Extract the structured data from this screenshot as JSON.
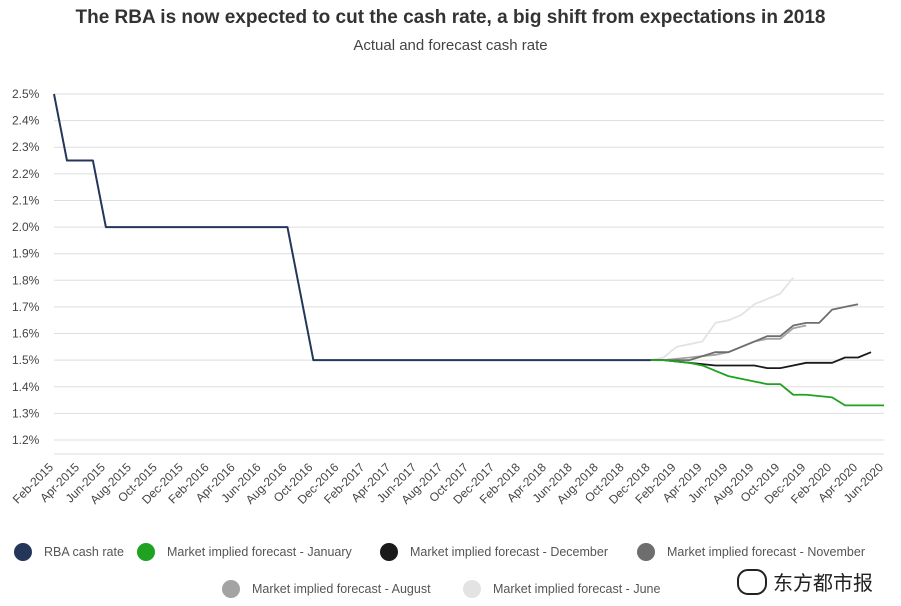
{
  "title": "The RBA is now expected to cut the cash rate, a big shift from expectations in 2018",
  "subtitle": "Actual and forecast cash rate",
  "watermark": "东方都市报",
  "chart_data": {
    "type": "line",
    "title": "The RBA is now expected to cut the cash rate, a big shift from expectations in 2018",
    "subtitle": "Actual and forecast cash rate",
    "y_ticks": [
      "1.2%",
      "1.3%",
      "1.4%",
      "1.5%",
      "1.6%",
      "1.7%",
      "1.8%",
      "1.9%",
      "2.0%",
      "2.1%",
      "2.2%",
      "2.3%",
      "2.4%",
      "2.5%"
    ],
    "ylim": [
      1.2,
      2.5
    ],
    "x_ticks": [
      "Feb-2015",
      "Apr-2015",
      "Jun-2015",
      "Aug-2015",
      "Oct-2015",
      "Dec-2015",
      "Feb-2016",
      "Apr-2016",
      "Jun-2016",
      "Aug-2016",
      "Oct-2016",
      "Dec-2016",
      "Feb-2017",
      "Apr-2017",
      "Jun-2017",
      "Aug-2017",
      "Oct-2017",
      "Dec-2017",
      "Feb-2018",
      "Apr-2018",
      "Jun-2018",
      "Aug-2018",
      "Oct-2018",
      "Dec-2018",
      "Feb-2019",
      "Apr-2019",
      "Jun-2019",
      "Aug-2019",
      "Oct-2019",
      "Dec-2019",
      "Feb-2020",
      "Apr-2020",
      "Jun-2020"
    ],
    "grid": true,
    "legend_position": "bottom",
    "series": [
      {
        "name": "RBA cash rate",
        "color": "#243659",
        "x": [
          "Feb-2015",
          "Mar-2015",
          "Apr-2015",
          "May-2015",
          "Jun-2015",
          "Jul-2015",
          "Aug-2016",
          "Sep-2016",
          "Oct-2016",
          "Dec-2018"
        ],
        "values": [
          2.5,
          2.25,
          2.25,
          2.25,
          2.0,
          2.0,
          2.0,
          1.75,
          1.5,
          1.5
        ]
      },
      {
        "name": "Market implied forecast - January",
        "color": "#1fa21f",
        "x": [
          "Dec-2018",
          "Jan-2019",
          "Mar-2019",
          "Apr-2019",
          "May-2019",
          "Jun-2019",
          "Aug-2019",
          "Sep-2019",
          "Oct-2019",
          "Nov-2019",
          "Dec-2019",
          "Feb-2020",
          "Mar-2020",
          "Apr-2020",
          "Jun-2020"
        ],
        "values": [
          1.5,
          1.5,
          1.49,
          1.48,
          1.46,
          1.44,
          1.42,
          1.41,
          1.41,
          1.37,
          1.37,
          1.36,
          1.33,
          1.33,
          1.33
        ]
      },
      {
        "name": "Market implied forecast - December",
        "color": "#1a1a1a",
        "x": [
          "Dec-2018",
          "Jan-2019",
          "Mar-2019",
          "May-2019",
          "Jun-2019",
          "Aug-2019",
          "Sep-2019",
          "Oct-2019",
          "Nov-2019",
          "Dec-2019",
          "Feb-2020",
          "Mar-2020",
          "Apr-2020",
          "May-2020"
        ],
        "values": [
          1.5,
          1.5,
          1.49,
          1.48,
          1.48,
          1.48,
          1.47,
          1.47,
          1.48,
          1.49,
          1.49,
          1.51,
          1.51,
          1.53
        ]
      },
      {
        "name": "Market implied forecast - November",
        "color": "#6e6e6e",
        "x": [
          "Dec-2018",
          "Jan-2019",
          "Mar-2019",
          "May-2019",
          "Jun-2019",
          "Aug-2019",
          "Sep-2019",
          "Oct-2019",
          "Nov-2019",
          "Dec-2019",
          "Jan-2020",
          "Feb-2020",
          "Mar-2020",
          "Apr-2020"
        ],
        "values": [
          1.5,
          1.5,
          1.5,
          1.53,
          1.53,
          1.57,
          1.59,
          1.59,
          1.63,
          1.64,
          1.64,
          1.69,
          1.7,
          1.71
        ]
      },
      {
        "name": "Market implied forecast - August",
        "color": "#a3a3a3",
        "x": [
          "Dec-2018",
          "Jan-2019",
          "Mar-2019",
          "May-2019",
          "Jun-2019",
          "Aug-2019",
          "Sep-2019",
          "Oct-2019",
          "Nov-2019",
          "Dec-2019"
        ],
        "values": [
          1.5,
          1.5,
          1.51,
          1.52,
          1.53,
          1.57,
          1.58,
          1.58,
          1.62,
          1.63
        ]
      },
      {
        "name": "Market implied forecast - June",
        "color": "#e3e3e3",
        "x": [
          "Dec-2018",
          "Jan-2019",
          "Feb-2019",
          "Mar-2019",
          "Apr-2019",
          "May-2019",
          "Jun-2019",
          "Jul-2019",
          "Aug-2019",
          "Sep-2019",
          "Oct-2019",
          "Nov-2019"
        ],
        "values": [
          1.5,
          1.51,
          1.55,
          1.56,
          1.57,
          1.64,
          1.65,
          1.67,
          1.71,
          1.73,
          1.75,
          1.81
        ]
      }
    ]
  }
}
